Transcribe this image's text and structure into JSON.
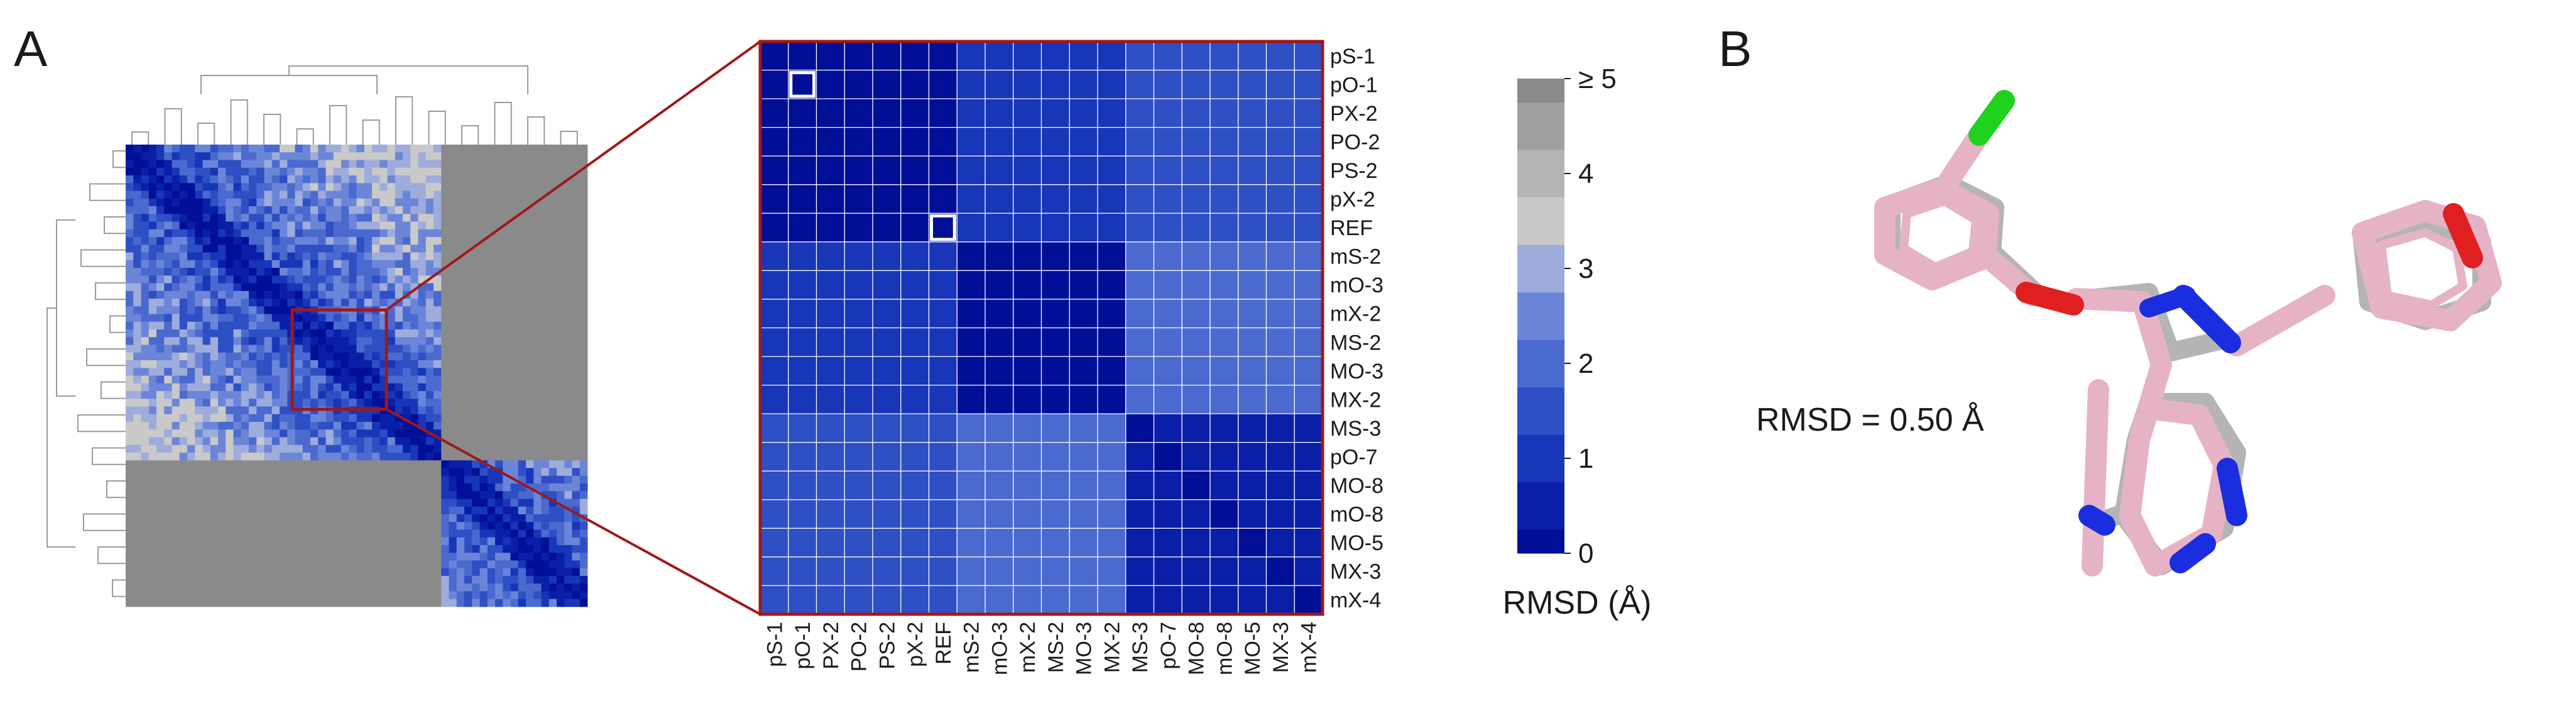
{
  "figure": {
    "panel_a_label": "A",
    "panel_b_label": "B",
    "rmsd_annotation": "RMSD = 0.50 Å"
  },
  "colors": {
    "background_gray": "#8a8a8a",
    "zoom_frame": "#a01818",
    "diag_highlight": "#ffffff",
    "scale": [
      "#000f96",
      "#0a1fa8",
      "#1836b8",
      "#2f4fc4",
      "#4a6ad0",
      "#6b86d8",
      "#9eacdc",
      "#c9c9c9",
      "#b5b5b5",
      "#a0a0a0",
      "#8a8a8a"
    ],
    "ligand_pink": "#e6b3c6",
    "ligand_gray": "#b4b4b4",
    "oxygen": "#e02020",
    "nitrogen": "#1a2ee0",
    "chlorine": "#1ed21e"
  },
  "chart_data": [
    {
      "type": "heatmap",
      "panel": "A-overview",
      "description_level": "clustered RMSD matrix with dendrograms",
      "blocks": [
        {
          "rows": [
            0,
            0.68
          ],
          "cols": [
            0,
            0.68
          ],
          "level": "low-to-medium"
        },
        {
          "rows": [
            0.68,
            1
          ],
          "cols": [
            0.68,
            1
          ],
          "level": "low-to-medium"
        },
        {
          "rows": [
            0,
            0.68
          ],
          "cols": [
            0.68,
            1
          ],
          "level": "≥ 5"
        },
        {
          "rows": [
            0.68,
            1
          ],
          "cols": [
            0,
            0.68
          ],
          "level": "≥ 5"
        }
      ]
    },
    {
      "type": "heatmap",
      "panel": "A-zoom",
      "labels": [
        "pS-1",
        "pO-1",
        "PX-2",
        "PO-2",
        "PS-2",
        "pX-2",
        "REF",
        "mS-2",
        "mO-3",
        "mX-2",
        "MS-2",
        "MO-3",
        "MX-2",
        "MS-3",
        "pO-7",
        "MO-8",
        "mO-8",
        "MO-5",
        "MX-3",
        "mX-4"
      ],
      "groups": [
        {
          "members": [
            0,
            1,
            2,
            3,
            4,
            5,
            6
          ],
          "within": 0.1
        },
        {
          "members": [
            7,
            8,
            9,
            10,
            11,
            12
          ],
          "within": 0.15
        },
        {
          "members": [
            13,
            14,
            15,
            16,
            17,
            18,
            19
          ],
          "within": 0.7
        }
      ],
      "between": [
        [
          0,
          1,
          1.1
        ],
        [
          0,
          2,
          1.5
        ],
        [
          1,
          2,
          2.2
        ]
      ],
      "highlighted": [
        "pO-1",
        "REF"
      ],
      "colorbar": {
        "label": "RMSD (Å)",
        "ticks": [
          "0",
          "1",
          "2",
          "3",
          "4",
          "≥ 5"
        ],
        "range": [
          0,
          5
        ]
      }
    }
  ]
}
